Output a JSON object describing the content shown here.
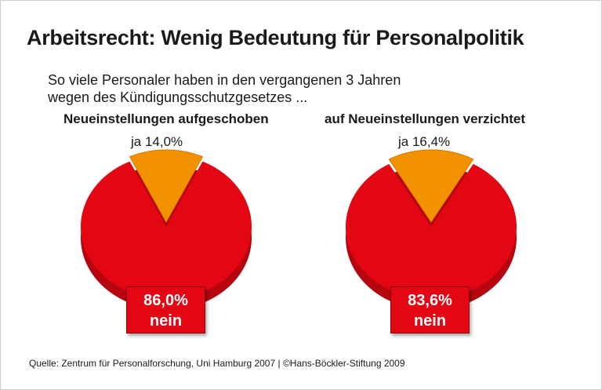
{
  "title": "Arbeitsrecht: Wenig Bedeutung für Personalpolitik",
  "subtitle_line1": "So viele Personaler haben in den vergangenen 3 Jahren",
  "subtitle_line2": "wegen des Kündigungsschutzgesetzes ...",
  "source": "Quelle: Zentrum für Personalforschung, Uni Hamburg 2007 | ©Hans-Böckler-Stiftung 2009",
  "chart_data": [
    {
      "type": "pie",
      "title": "Neueinstellungen aufgeschoben",
      "slices": [
        {
          "label": "ja",
          "value": 14.0,
          "display": "ja 14,0%",
          "color": "#f39200"
        },
        {
          "label": "nein",
          "value": 86.0,
          "display_value": "86,0%",
          "display_label": "nein",
          "color": "#e30613"
        }
      ]
    },
    {
      "type": "pie",
      "title": "auf Neueinstellungen verzichtet",
      "slices": [
        {
          "label": "ja",
          "value": 16.4,
          "display": "ja 16,4%",
          "color": "#f39200"
        },
        {
          "label": "nein",
          "value": 83.6,
          "display_value": "83,6%",
          "display_label": "nein",
          "color": "#e30613"
        }
      ]
    }
  ]
}
